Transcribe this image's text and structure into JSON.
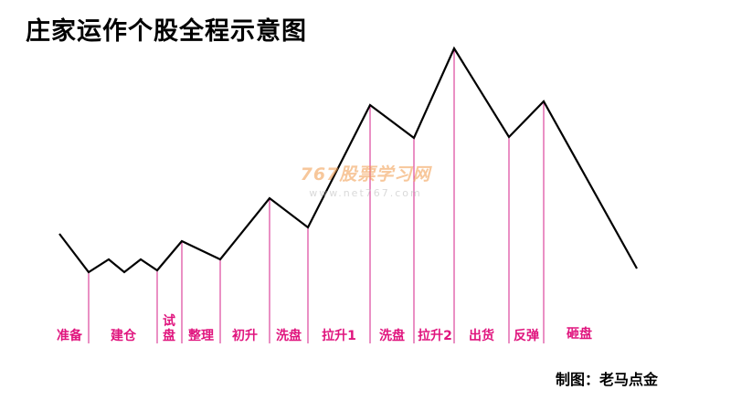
{
  "title": "庄家运作个股全程示意图",
  "credit": "制图：老马点金",
  "watermark": {
    "brand": "767股票学习网",
    "url": "www.net767.com"
  },
  "colors": {
    "line": "#000000",
    "divider": "#d4218a",
    "label": "#e0157e",
    "watermark": "#f19a4a"
  },
  "phases": [
    {
      "id": "prep",
      "label": "准备"
    },
    {
      "id": "build",
      "label": "建仓"
    },
    {
      "id": "test",
      "label": "试盘"
    },
    {
      "id": "consolidate",
      "label": "整理"
    },
    {
      "id": "initial-rise",
      "label": "初升"
    },
    {
      "id": "washout-1",
      "label": "洗盘"
    },
    {
      "id": "rally-1",
      "label": "拉升1"
    },
    {
      "id": "washout-2",
      "label": "洗盘"
    },
    {
      "id": "rally-2",
      "label": "拉升2"
    },
    {
      "id": "distribute",
      "label": "出货"
    },
    {
      "id": "rebound",
      "label": "反弹"
    },
    {
      "id": "crash",
      "label": "砸盘"
    }
  ]
}
